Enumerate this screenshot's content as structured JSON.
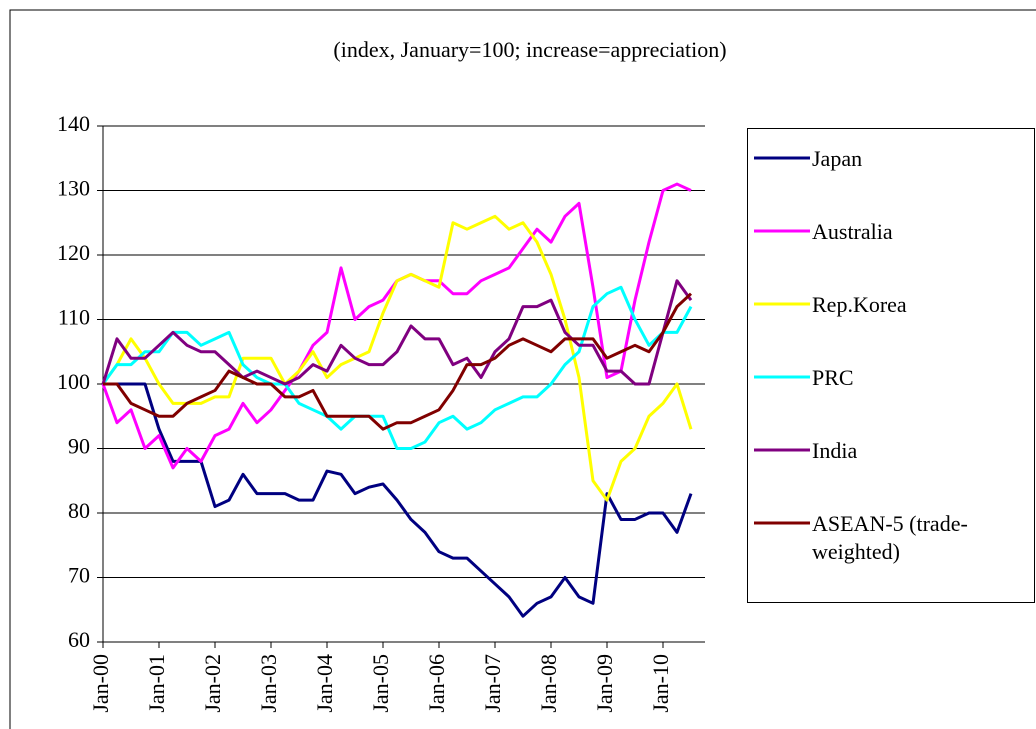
{
  "chart_data": {
    "type": "line",
    "title": "(index, January=100; increase=appreciation)",
    "categories": [
      "Jan-00",
      null,
      null,
      null,
      "Jan-01",
      null,
      null,
      null,
      "Jan-02",
      null,
      null,
      null,
      "Jan-03",
      null,
      null,
      null,
      "Jan-04",
      null,
      null,
      null,
      "Jan-05",
      null,
      null,
      null,
      "Jan-06",
      null,
      null,
      null,
      "Jan-07",
      null,
      null,
      null,
      "Jan-08",
      null,
      null,
      null,
      "Jan-09",
      null,
      null,
      null,
      "Jan-10",
      null,
      null
    ],
    "ylim": [
      60,
      140
    ],
    "yticks": [
      60,
      70,
      80,
      90,
      100,
      110,
      120,
      130,
      140
    ],
    "grid": true,
    "series": [
      {
        "name": "Japan",
        "color": "#000080",
        "values": [
          100,
          100,
          100,
          100,
          93,
          88,
          88,
          88,
          81,
          82,
          86,
          83,
          83,
          83,
          82,
          82,
          86.5,
          86,
          83,
          84,
          84.5,
          82,
          79,
          77,
          74,
          73,
          73,
          71,
          69,
          67,
          64,
          66,
          67,
          70,
          67,
          66,
          83,
          79,
          79,
          80,
          80,
          77,
          83
        ]
      },
      {
        "name": "Australia",
        "color": "#ff00ff",
        "values": [
          100,
          94,
          96,
          90,
          92,
          87,
          90,
          88,
          92,
          93,
          97,
          94,
          96,
          99,
          102,
          106,
          108,
          118,
          110,
          112,
          113,
          116,
          117,
          116,
          116,
          114,
          114,
          116,
          117,
          118,
          121,
          124,
          122,
          126,
          128,
          115,
          101,
          102,
          113,
          122,
          130,
          131,
          130
        ]
      },
      {
        "name": "Rep.Korea",
        "color": "#ffff00",
        "values": [
          100,
          103,
          107,
          104,
          100,
          97,
          97,
          97,
          98,
          98,
          104,
          104,
          104,
          100,
          102,
          105,
          101,
          103,
          104,
          105,
          111,
          116,
          117,
          116,
          115,
          125,
          124,
          125,
          126,
          124,
          125,
          122,
          117,
          110,
          101,
          85,
          82,
          88,
          90,
          95,
          97,
          100,
          93
        ]
      },
      {
        "name": "PRC",
        "color": "#00ffff",
        "values": [
          100,
          103,
          103,
          105,
          105,
          108,
          108,
          106,
          107,
          108,
          103,
          101,
          100,
          100,
          97,
          96,
          95,
          93,
          95,
          95,
          95,
          90,
          90,
          91,
          94,
          95,
          93,
          94,
          96,
          97,
          98,
          98,
          100,
          103,
          105,
          112,
          114,
          115,
          110,
          106,
          108,
          108,
          112
        ]
      },
      {
        "name": "India",
        "color": "#800080",
        "values": [
          100,
          107,
          104,
          104,
          106,
          108,
          106,
          105,
          105,
          103,
          101,
          102,
          101,
          100,
          101,
          103,
          102,
          106,
          104,
          103,
          103,
          105,
          109,
          107,
          107,
          103,
          104,
          101,
          105,
          107,
          112,
          112,
          113,
          108,
          106,
          106,
          102,
          102,
          100,
          100,
          108,
          116,
          113
        ]
      },
      {
        "name": "ASEAN-5 (trade-weighted)",
        "color": "#800000",
        "values": [
          100,
          100,
          97,
          96,
          95,
          95,
          97,
          98,
          99,
          102,
          101,
          100,
          100,
          98,
          98,
          99,
          95,
          95,
          95,
          95,
          93,
          94,
          94,
          95,
          96,
          99,
          103,
          103,
          104,
          106,
          107,
          106,
          105,
          107,
          107,
          107,
          104,
          105,
          106,
          105,
          108,
          112,
          114
        ]
      }
    ]
  }
}
